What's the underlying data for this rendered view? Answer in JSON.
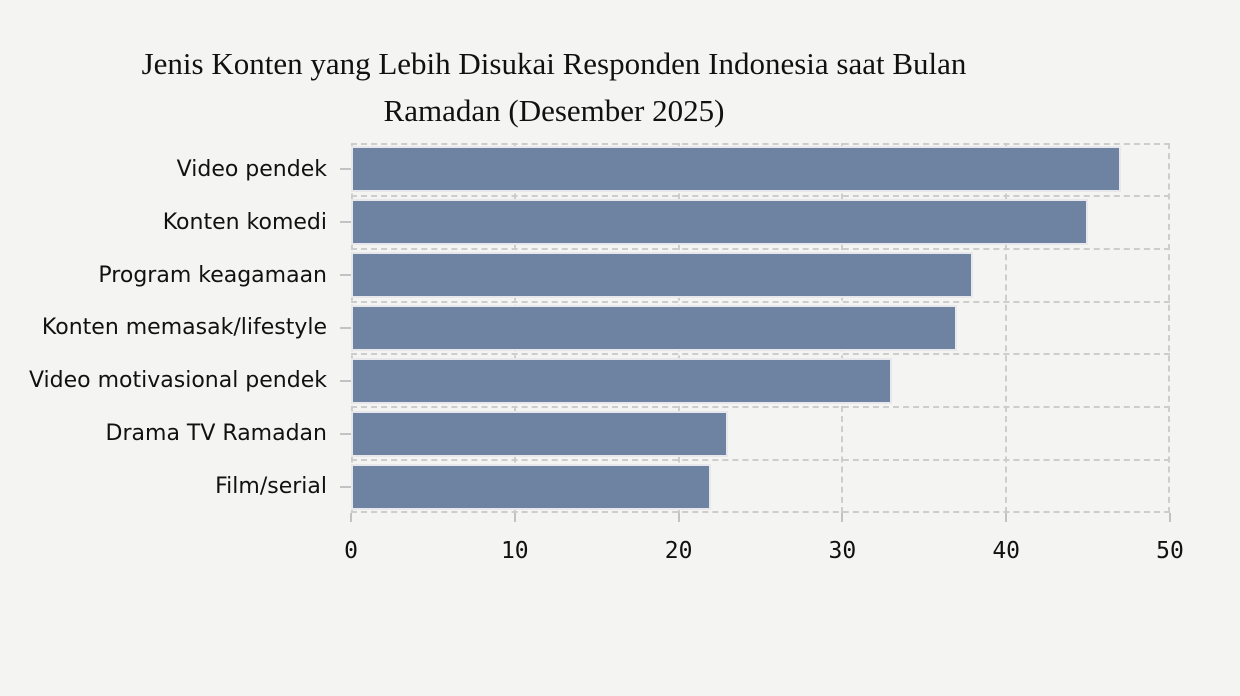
{
  "page": {
    "background": "#f4f4f2"
  },
  "title": {
    "line1": "Jenis Konten yang Lebih Disukai Responden Indonesia saat Bulan",
    "line2": "Ramadan (Desember 2025)"
  },
  "chart_data": {
    "type": "bar",
    "orientation": "horizontal",
    "title": "Jenis Konten yang Lebih Disukai Responden Indonesia saat Bulan Ramadan (Desember 2025)",
    "categories": [
      "Video pendek",
      "Konten komedi",
      "Program keagamaan",
      "Konten memasak/lifestyle",
      "Video motivasional pendek",
      "Drama TV Ramadan",
      "Film/serial"
    ],
    "values": [
      47,
      45,
      38,
      37,
      33,
      23,
      22
    ],
    "xlabel": "",
    "ylabel": "",
    "xlim": [
      0,
      50
    ],
    "xticks": [
      0,
      10,
      20,
      30,
      40,
      50
    ],
    "grid": true,
    "legend": false,
    "styles": {
      "bar_color": "#6e83a1",
      "bar_border_color": "#e7e7ec",
      "grid_color": "#cdcdcd",
      "tick_color": "#c2c2c2",
      "text_color": "#111111",
      "background": "#f4f4f2"
    }
  }
}
